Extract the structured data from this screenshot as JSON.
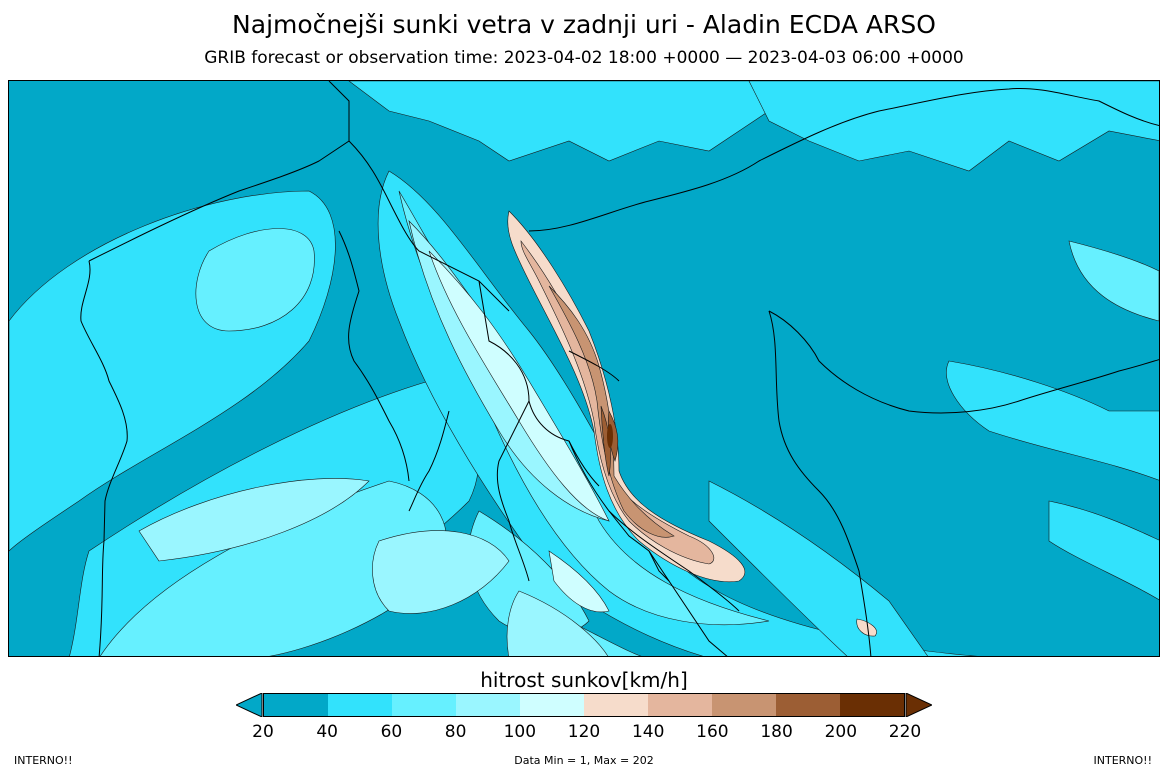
{
  "title": "Najmočnejši sunki vetra v zadnji uri - Aladin ECDA ARSO",
  "subtitle": "GRIB forecast or observation time: 2023-04-02 18:00 +0000 — 2023-04-03 06:00 +0000",
  "colorbar": {
    "label": "hitrost sunkov[km/h]",
    "ticks": [
      "20",
      "40",
      "60",
      "80",
      "100",
      "120",
      "140",
      "160",
      "180",
      "200",
      "220"
    ],
    "colors": [
      "#02a8c8",
      "#32e2fc",
      "#66f0ff",
      "#9af6ff",
      "#cffeff",
      "#f6dccb",
      "#e4b69e",
      "#c89472",
      "#9c5e34",
      "#6a2f04"
    ],
    "under_color": "#02a8c8",
    "over_color": "#6a2f04"
  },
  "footer": {
    "left": "INTERNO!!",
    "center": "Data Min = 1, Max = 202",
    "right": "INTERNO!!"
  }
}
